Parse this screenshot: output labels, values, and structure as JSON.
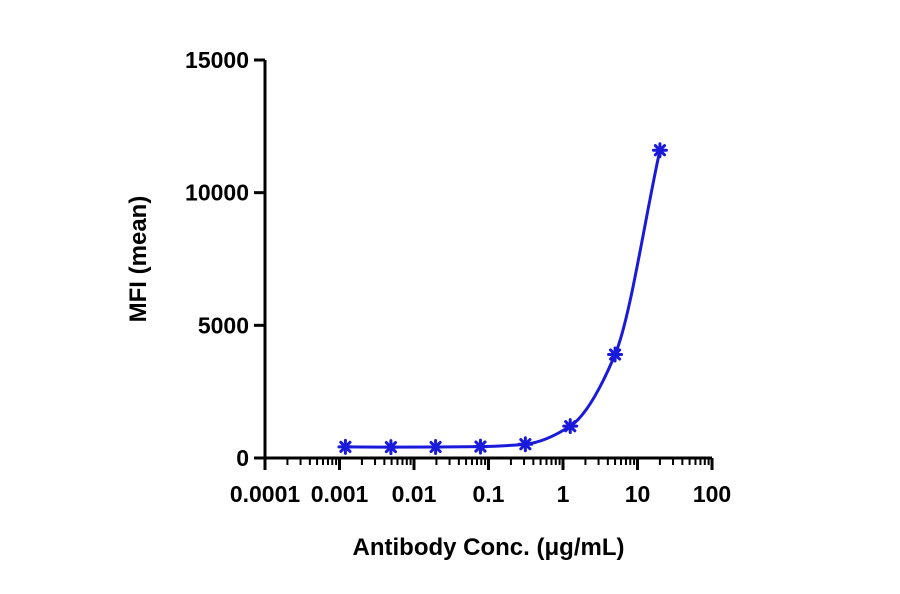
{
  "chart_data": {
    "type": "scatter",
    "title": "",
    "xlabel": "Antibody Conc. (μg/mL)",
    "ylabel": "MFI (mean)",
    "x_scale": "log",
    "xlim": [
      0.0001,
      100
    ],
    "ylim": [
      0,
      15000
    ],
    "x_ticks": [
      0.0001,
      0.001,
      0.01,
      0.1,
      1,
      10,
      100
    ],
    "x_tick_labels": [
      "0.0001",
      "0.001",
      "0.01",
      "0.1",
      "1",
      "10",
      "100"
    ],
    "y_ticks": [
      0,
      5000,
      10000,
      15000
    ],
    "y_tick_labels": [
      "0",
      "5000",
      "10000",
      "15000"
    ],
    "grid": false,
    "series": [
      {
        "x": [
          0.0012,
          0.0049,
          0.0195,
          0.078,
          0.3125,
          1.25,
          5,
          20
        ],
        "y": [
          420,
          410,
          415,
          430,
          520,
          1200,
          3900,
          11600
        ],
        "color": "#1a1adb",
        "marker": "asterisk",
        "fit": "sigmoidal curve"
      }
    ]
  }
}
